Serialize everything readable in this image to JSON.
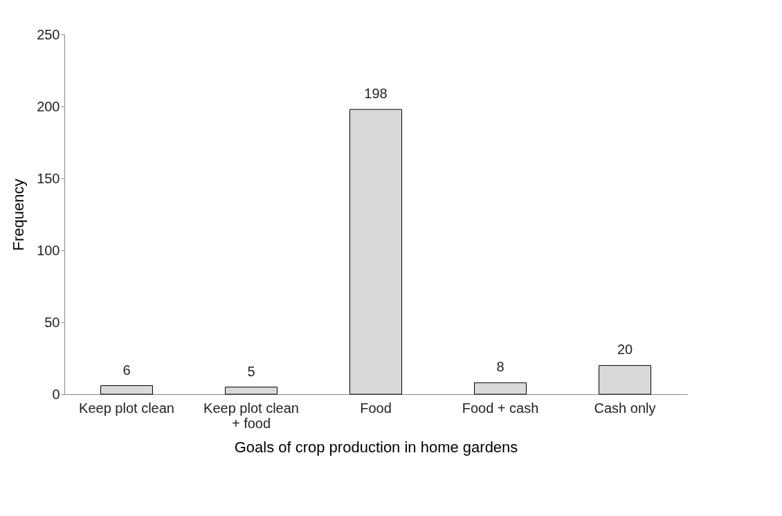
{
  "chart_data": {
    "type": "bar",
    "xlabel": "Goals of crop production in home gardens",
    "ylabel": "Frequency",
    "categories": [
      "Keep plot clean",
      "Keep plot clean\n+ food",
      "Food",
      "Food + cash",
      "Cash only"
    ],
    "values": [
      6,
      5,
      198,
      8,
      20
    ],
    "color": "#d9d9d9",
    "ylim": [
      0,
      250
    ],
    "yticks": [
      0,
      50,
      100,
      150,
      200,
      250
    ],
    "grid": false,
    "data_labels": true
  }
}
